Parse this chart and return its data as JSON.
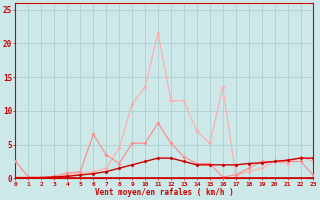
{
  "x": [
    0,
    1,
    2,
    3,
    4,
    5,
    6,
    7,
    8,
    9,
    10,
    11,
    12,
    13,
    14,
    15,
    16,
    17,
    18,
    19,
    20,
    21,
    22,
    23
  ],
  "line_rafales": [
    0.2,
    0.2,
    0.2,
    0.2,
    0.5,
    0.8,
    1.0,
    1.5,
    4.5,
    11.0,
    13.5,
    21.5,
    11.5,
    11.5,
    7.0,
    5.2,
    13.5,
    0.5,
    1.0,
    1.5,
    2.5,
    2.2,
    3.2,
    2.5
  ],
  "line_vent": [
    2.5,
    0.2,
    0.2,
    0.3,
    0.8,
    1.0,
    6.5,
    3.5,
    2.2,
    5.2,
    5.2,
    8.2,
    5.2,
    3.2,
    2.2,
    2.2,
    0.2,
    0.5,
    1.5,
    2.5,
    2.5,
    2.5,
    2.5,
    0.5
  ],
  "line_trend": [
    0.0,
    0.1,
    0.1,
    0.2,
    0.3,
    0.5,
    0.7,
    1.0,
    1.5,
    2.0,
    2.5,
    3.0,
    3.0,
    2.5,
    2.0,
    2.0,
    2.0,
    2.0,
    2.2,
    2.3,
    2.5,
    2.7,
    3.0,
    3.0
  ],
  "col_rafales": "#ffaaaa",
  "col_vent": "#ff8888",
  "col_trend": "#cc0000",
  "bg_color": "#cce8e8",
  "grid_color": "#aacccc",
  "label_color": "#cc0000",
  "xlabel": "Vent moyen/en rafales ( km/h )",
  "yticks": [
    0,
    5,
    10,
    15,
    20,
    25
  ],
  "xlim": [
    0,
    23
  ],
  "ylim": [
    0,
    26
  ]
}
